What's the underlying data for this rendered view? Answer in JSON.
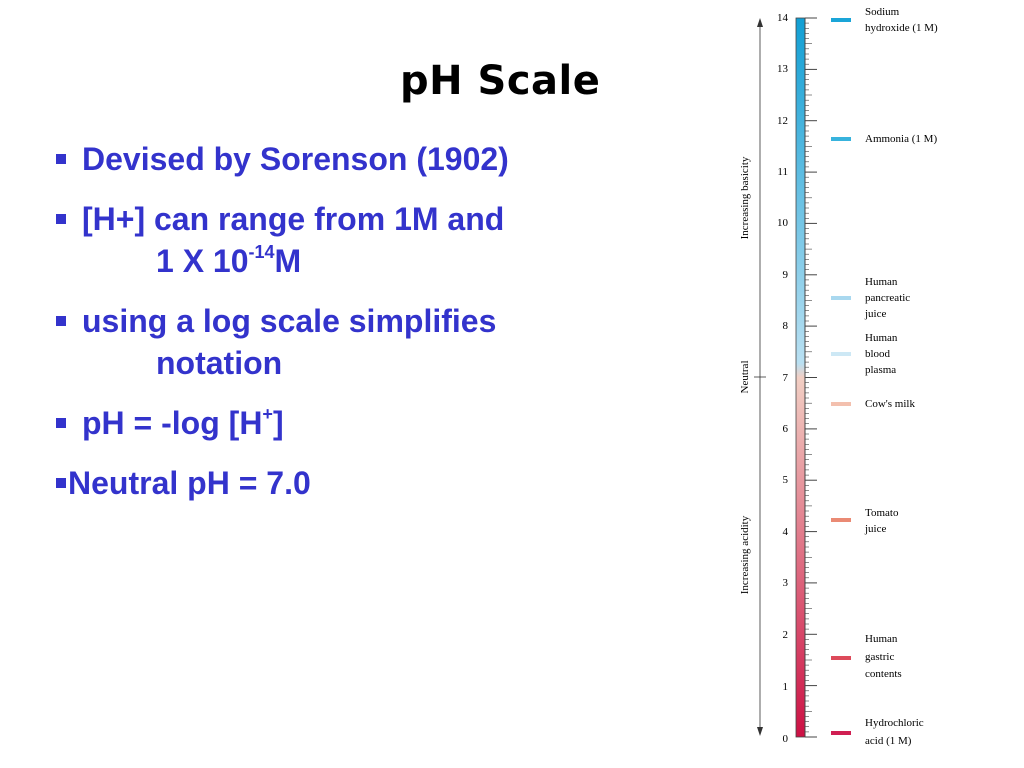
{
  "slide": {
    "title": "pH Scale",
    "bullets": [
      {
        "text": "Devised by Sorenson (1902)"
      },
      {
        "line1": "[H+] can range from 1M and",
        "line2_pre": "1 X 10",
        "line2_sup": "-14",
        "line2_post": "M"
      },
      {
        "line1": "using a log scale simplifies",
        "line2": "notation"
      },
      {
        "pre": "pH = -log [H",
        "sup": "+",
        "post": "]"
      },
      {
        "text": "Neutral pH = 7.0"
      }
    ]
  },
  "figure": {
    "tick_labels": [
      "0",
      "1",
      "2",
      "3",
      "4",
      "5",
      "6",
      "7",
      "8",
      "9",
      "10",
      "11",
      "12",
      "13",
      "14"
    ],
    "range": [
      0,
      14
    ],
    "side_labels": {
      "basicity": "Increasing basicity",
      "neutral": "Neutral",
      "acidity": "Increasing acidity"
    },
    "markers": [
      {
        "ph": 14.0,
        "color": "#1aa5d8",
        "lines": [
          "Sodium",
          "hydroxide (1 M)"
        ]
      },
      {
        "ph": 11.5,
        "color": "#38b3dd",
        "lines": [
          "Ammonia (1 M)"
        ]
      },
      {
        "ph": 8.5,
        "color": "#a9d8ef",
        "lines": [
          "Human",
          "pancreatic",
          "juice"
        ]
      },
      {
        "ph": 7.4,
        "color": "#cde8f5",
        "lines": [
          "Human",
          "blood",
          "plasma"
        ]
      },
      {
        "ph": 6.5,
        "color": "#f3c0ae",
        "lines": [
          "Cow's milk"
        ]
      },
      {
        "ph": 4.2,
        "color": "#ea8a74",
        "lines": [
          "Tomato",
          "juice"
        ]
      },
      {
        "ph": 1.6,
        "color": "#dd4a5a",
        "lines": [
          "Human",
          "gastric",
          "contents"
        ]
      },
      {
        "ph": 0.0,
        "color": "#d01f52",
        "lines": [
          "Hydrochloric",
          "acid (1 M)"
        ]
      }
    ],
    "colors": {
      "acid": "#cc1144",
      "neutral": "#f2cfc4",
      "base": "#119fd4"
    }
  }
}
